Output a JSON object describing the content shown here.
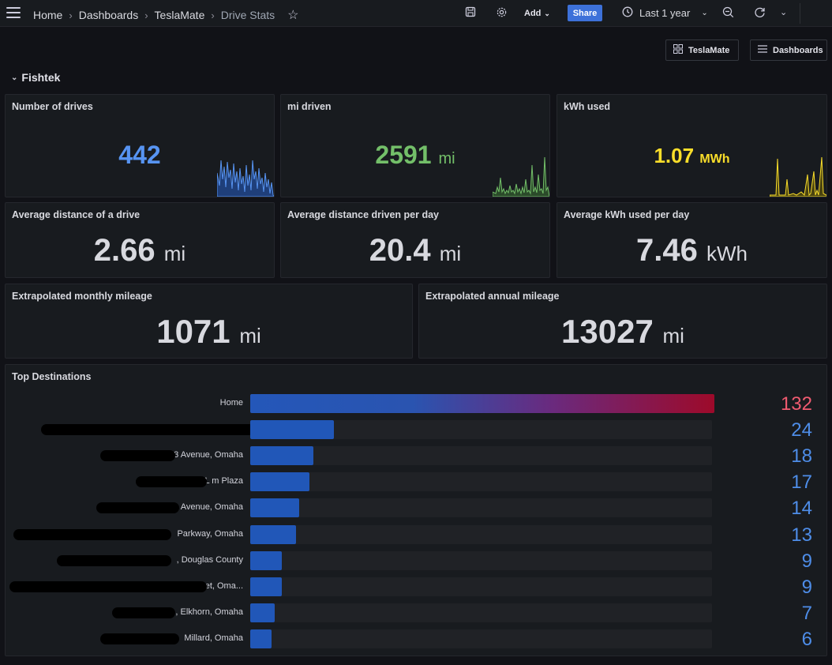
{
  "topbar": {
    "breadcrumbs": [
      "Home",
      "Dashboards",
      "TeslaMate",
      "Drive Stats"
    ],
    "add_label": "Add",
    "share_label": "Share",
    "time_range": "Last 1 year"
  },
  "links": {
    "teslamate": "TeslaMate",
    "dashboards": "Dashboards"
  },
  "row": {
    "title": "Fishtek"
  },
  "panels": {
    "num_drives": {
      "title": "Number of drives",
      "value": "442",
      "color": "#5794f2"
    },
    "mi_driven": {
      "title": "mi driven",
      "value": "2591",
      "unit": "mi",
      "color": "#73bf69"
    },
    "kwh_used": {
      "title": "kWh used",
      "value": "1.07",
      "unit": "MWh",
      "color": "#fade2a"
    },
    "avg_distance": {
      "title": "Average distance of a drive",
      "value": "2.66",
      "unit": "mi"
    },
    "avg_distance_day": {
      "title": "Average distance driven per day",
      "value": "20.4",
      "unit": "mi"
    },
    "avg_kwh_day": {
      "title": "Average kWh used per day",
      "value": "7.46",
      "unit": "kWh"
    },
    "monthly": {
      "title": "Extrapolated monthly mileage",
      "value": "1071",
      "unit": "mi"
    },
    "annual": {
      "title": "Extrapolated annual mileage",
      "value": "13027",
      "unit": "mi"
    }
  },
  "top_destinations": {
    "title": "Top Destinations",
    "max": 132,
    "rows": [
      {
        "label": "Home",
        "count": "132",
        "value": 132
      },
      {
        "label": "",
        "count": "24",
        "value": 24
      },
      {
        "label": "3                    Avenue, Omaha",
        "count": "18",
        "value": 18
      },
      {
        "label": "L                    m Plaza",
        "count": "17",
        "value": 17
      },
      {
        "label": "Avenue, Omaha",
        "count": "14",
        "value": 14
      },
      {
        "label": "Parkway, Omaha",
        "count": "13",
        "value": 13
      },
      {
        "label": ", Douglas County",
        "count": "9",
        "value": 9
      },
      {
        "label": "et, Oma...",
        "count": "9",
        "value": 9
      },
      {
        "label": ", Elkhorn, Omaha",
        "count": "7",
        "value": 7
      },
      {
        "label": "Millard, Omaha",
        "count": "6",
        "value": 6
      }
    ]
  },
  "colors": {
    "background": "#111217",
    "panel": "#181b1f",
    "stat_white": "#d8d9df",
    "bar_blue": "#2157b8",
    "bar_top_end": "#9d0a2a",
    "count_blue": "#4e8de8",
    "count_top": "#f05b70"
  }
}
